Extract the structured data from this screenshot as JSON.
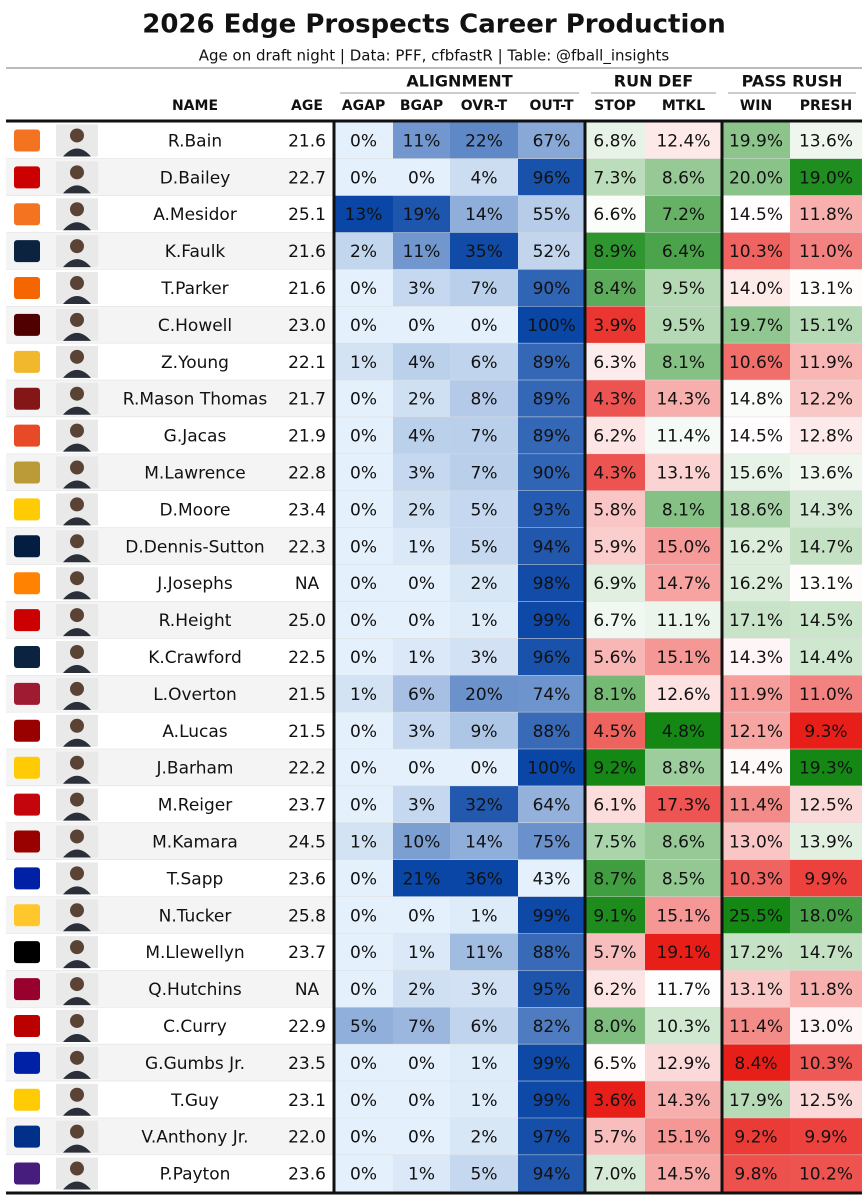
{
  "header": {
    "title": "2026 Edge Prospects Career Production",
    "subtitle": "Age on draft night | Data: PFF, cfbfastR | Table: @fball_insights"
  },
  "groups": [
    "ALIGNMENT",
    "RUN DEF",
    "PASS RUSH"
  ],
  "columns": [
    "NAME",
    "AGE",
    "AGAP",
    "BGAP",
    "OVR-T",
    "OUT-T",
    "STOP",
    "MTKL",
    "WIN",
    "PRESH"
  ],
  "rows": [
    [
      "R.Bain",
      "21.6",
      "0%",
      "11%",
      "22%",
      "67%",
      "6.8%",
      "12.4%",
      "19.9%",
      "13.6%"
    ],
    [
      "D.Bailey",
      "22.7",
      "0%",
      "0%",
      "4%",
      "96%",
      "7.3%",
      "8.6%",
      "20.0%",
      "19.0%"
    ],
    [
      "A.Mesidor",
      "25.1",
      "13%",
      "19%",
      "14%",
      "55%",
      "6.6%",
      "7.2%",
      "14.5%",
      "11.8%"
    ],
    [
      "K.Faulk",
      "21.6",
      "2%",
      "11%",
      "35%",
      "52%",
      "8.9%",
      "6.4%",
      "10.3%",
      "11.0%"
    ],
    [
      "T.Parker",
      "21.6",
      "0%",
      "3%",
      "7%",
      "90%",
      "8.4%",
      "9.5%",
      "14.0%",
      "13.1%"
    ],
    [
      "C.Howell",
      "23.0",
      "0%",
      "0%",
      "0%",
      "100%",
      "3.9%",
      "9.5%",
      "19.7%",
      "15.1%"
    ],
    [
      "Z.Young",
      "22.1",
      "1%",
      "4%",
      "6%",
      "89%",
      "6.3%",
      "8.1%",
      "10.6%",
      "11.9%"
    ],
    [
      "R.Mason Thomas",
      "21.7",
      "0%",
      "2%",
      "8%",
      "89%",
      "4.3%",
      "14.3%",
      "14.8%",
      "12.2%"
    ],
    [
      "G.Jacas",
      "21.9",
      "0%",
      "4%",
      "7%",
      "89%",
      "6.2%",
      "11.4%",
      "14.5%",
      "12.8%"
    ],
    [
      "M.Lawrence",
      "22.8",
      "0%",
      "3%",
      "7%",
      "90%",
      "4.3%",
      "13.1%",
      "15.6%",
      "13.6%"
    ],
    [
      "D.Moore",
      "23.4",
      "0%",
      "2%",
      "5%",
      "93%",
      "5.8%",
      "8.1%",
      "18.6%",
      "14.3%"
    ],
    [
      "D.Dennis-Sutton",
      "22.3",
      "0%",
      "1%",
      "5%",
      "94%",
      "5.9%",
      "15.0%",
      "16.2%",
      "14.7%"
    ],
    [
      "J.Josephs",
      "NA",
      "0%",
      "0%",
      "2%",
      "98%",
      "6.9%",
      "14.7%",
      "16.2%",
      "13.1%"
    ],
    [
      "R.Height",
      "25.0",
      "0%",
      "0%",
      "1%",
      "99%",
      "6.7%",
      "11.1%",
      "17.1%",
      "14.5%"
    ],
    [
      "K.Crawford",
      "22.5",
      "0%",
      "1%",
      "3%",
      "96%",
      "5.6%",
      "15.1%",
      "14.3%",
      "14.4%"
    ],
    [
      "L.Overton",
      "21.5",
      "1%",
      "6%",
      "20%",
      "74%",
      "8.1%",
      "12.6%",
      "11.9%",
      "11.0%"
    ],
    [
      "A.Lucas",
      "21.5",
      "0%",
      "3%",
      "9%",
      "88%",
      "4.5%",
      "4.8%",
      "12.1%",
      "9.3%"
    ],
    [
      "J.Barham",
      "22.2",
      "0%",
      "0%",
      "0%",
      "100%",
      "9.2%",
      "8.8%",
      "14.4%",
      "19.3%"
    ],
    [
      "M.Reiger",
      "23.7",
      "0%",
      "3%",
      "32%",
      "64%",
      "6.1%",
      "17.3%",
      "11.4%",
      "12.5%"
    ],
    [
      "M.Kamara",
      "24.5",
      "1%",
      "10%",
      "14%",
      "75%",
      "7.5%",
      "8.6%",
      "13.0%",
      "13.9%"
    ],
    [
      "T.Sapp",
      "23.6",
      "0%",
      "21%",
      "36%",
      "43%",
      "8.7%",
      "8.5%",
      "10.3%",
      "9.9%"
    ],
    [
      "N.Tucker",
      "25.8",
      "0%",
      "0%",
      "1%",
      "99%",
      "9.1%",
      "15.1%",
      "25.5%",
      "18.0%"
    ],
    [
      "M.Llewellyn",
      "23.7",
      "0%",
      "1%",
      "11%",
      "88%",
      "5.7%",
      "19.1%",
      "17.2%",
      "14.7%"
    ],
    [
      "Q.Hutchins",
      "NA",
      "0%",
      "2%",
      "3%",
      "95%",
      "6.2%",
      "11.7%",
      "13.1%",
      "11.8%"
    ],
    [
      "C.Curry",
      "22.9",
      "5%",
      "7%",
      "6%",
      "82%",
      "8.0%",
      "10.3%",
      "11.4%",
      "13.0%"
    ],
    [
      "G.Gumbs Jr.",
      "23.5",
      "0%",
      "0%",
      "1%",
      "99%",
      "6.5%",
      "12.9%",
      "8.4%",
      "10.3%"
    ],
    [
      "T.Guy",
      "23.1",
      "0%",
      "0%",
      "1%",
      "99%",
      "3.6%",
      "14.3%",
      "17.9%",
      "12.5%"
    ],
    [
      "V.Anthony Jr.",
      "22.0",
      "0%",
      "0%",
      "2%",
      "97%",
      "5.7%",
      "15.1%",
      "9.2%",
      "9.9%"
    ],
    [
      "P.Payton",
      "23.6",
      "0%",
      "1%",
      "5%",
      "94%",
      "7.0%",
      "14.5%",
      "9.8%",
      "10.2%"
    ]
  ]
}
